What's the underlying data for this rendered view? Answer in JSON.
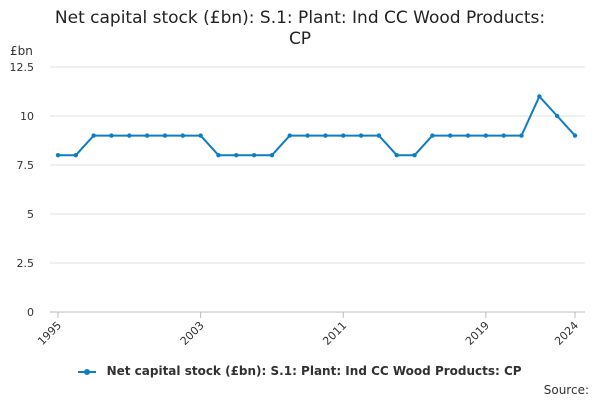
{
  "title": {
    "line1": "Net capital stock (£bn): S.1: Plant: Ind CC Wood Products:",
    "line2": "CP"
  },
  "source_label": "Source:",
  "chart_data": {
    "type": "line",
    "title": "Net capital stock (£bn): S.1: Plant: Ind CC Wood Products: CP",
    "ylabel": "£bn",
    "xlabel": "",
    "ylim": [
      0,
      12.5
    ],
    "yticks": [
      "0",
      "2.5",
      "5",
      "7.5",
      "10",
      "12.5"
    ],
    "xticks": [
      "1995",
      "2003",
      "2011",
      "2019",
      "2024"
    ],
    "grid": true,
    "legend_position": "bottom",
    "color": "#0f7dc2",
    "x": [
      1995,
      1996,
      1997,
      1998,
      1999,
      2000,
      2001,
      2002,
      2003,
      2004,
      2005,
      2006,
      2007,
      2008,
      2009,
      2010,
      2011,
      2012,
      2013,
      2014,
      2015,
      2016,
      2017,
      2018,
      2019,
      2020,
      2021,
      2022,
      2023,
      2024
    ],
    "series": [
      {
        "name": "Net capital stock (£bn): S.1: Plant: Ind CC Wood Products: CP",
        "values": [
          8,
          8,
          9,
          9,
          9,
          9,
          9,
          9,
          9,
          8,
          8,
          8,
          8,
          9,
          9,
          9,
          9,
          9,
          9,
          8,
          8,
          9,
          9,
          9,
          9,
          9,
          9,
          11,
          10,
          9
        ]
      }
    ]
  }
}
